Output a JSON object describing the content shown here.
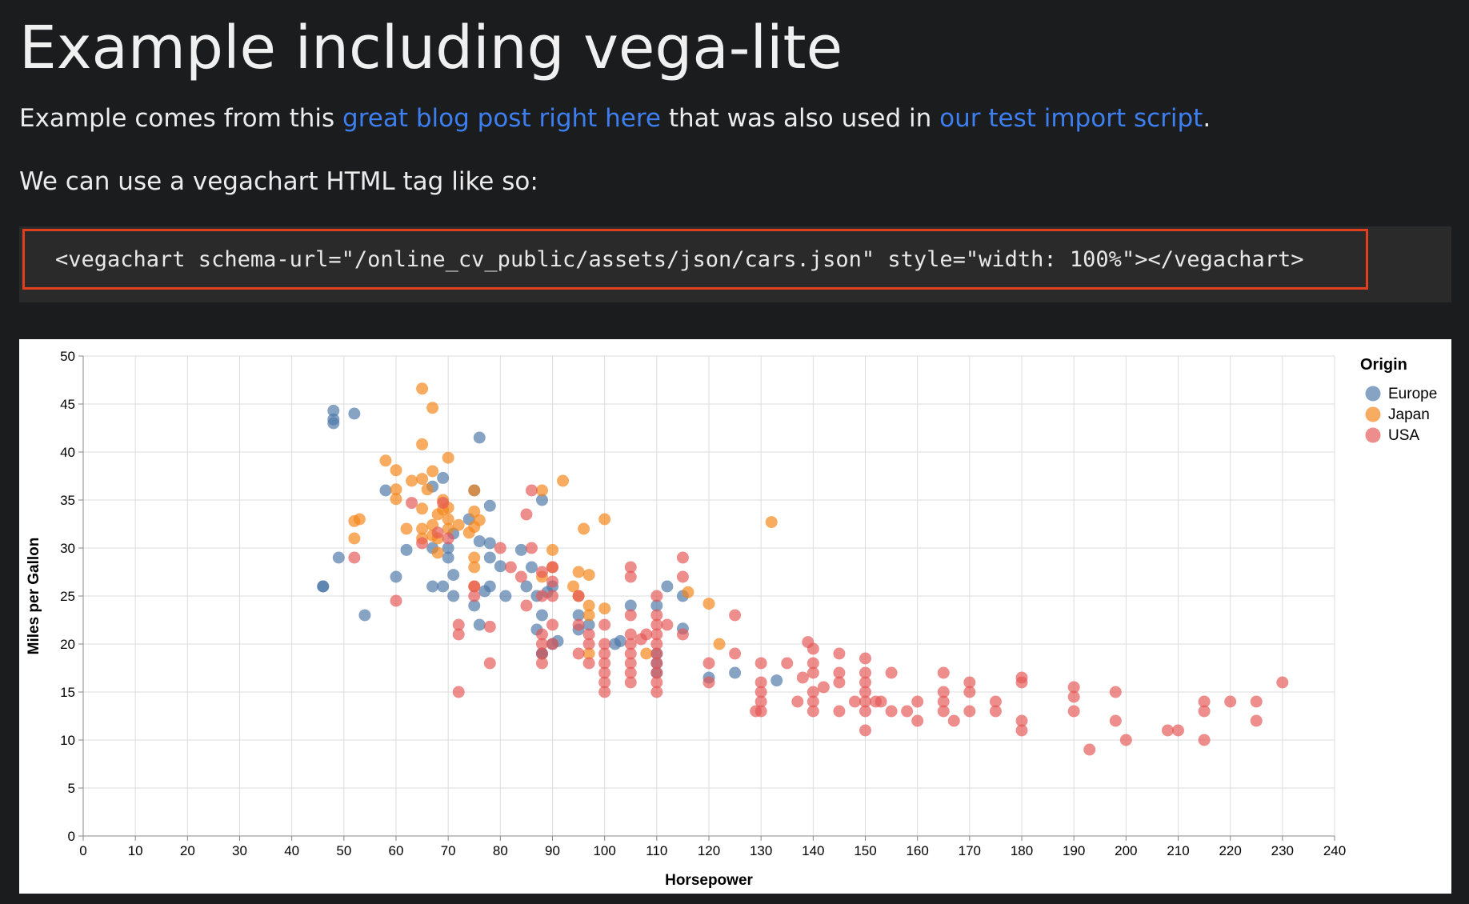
{
  "page": {
    "title": "Example including vega-lite",
    "intro": {
      "prefix": "Example comes from this ",
      "link1": "great blog post right here",
      "middle": " that was also used in ",
      "link2": "our test import script",
      "suffix": "."
    },
    "instruction": "We can use a vegachart HTML tag like so:",
    "code": "<vegachart schema-url=\"/online_cv_public/assets/json/cars.json\" style=\"width: 100%\"></vegachart>"
  },
  "colors": {
    "background": "#1b1c1e",
    "link": "#3d7ff0",
    "highlight_border": "#e2401c",
    "Europe": "#4c78a8",
    "Japan": "#f58518",
    "USA": "#e45756"
  },
  "chart_data": {
    "type": "scatter",
    "xlabel": "Horsepower",
    "ylabel": "Miles per Gallon",
    "xlim": [
      0,
      240
    ],
    "ylim": [
      0,
      50
    ],
    "x_ticks": [
      0,
      10,
      20,
      30,
      40,
      50,
      60,
      70,
      80,
      90,
      100,
      110,
      120,
      130,
      140,
      150,
      160,
      170,
      180,
      190,
      200,
      210,
      220,
      230,
      240
    ],
    "y_ticks": [
      0,
      5,
      10,
      15,
      20,
      25,
      30,
      35,
      40,
      45,
      50
    ],
    "grid": true,
    "legend": {
      "title": "Origin",
      "position": "top-right"
    },
    "series": [
      {
        "name": "Europe",
        "points": [
          [
            46,
            26
          ],
          [
            46,
            26
          ],
          [
            48,
            43
          ],
          [
            48,
            43.4
          ],
          [
            48,
            44.3
          ],
          [
            49,
            29
          ],
          [
            52,
            44
          ],
          [
            54,
            23
          ],
          [
            58,
            36
          ],
          [
            60,
            27
          ],
          [
            62,
            29.8
          ],
          [
            67,
            30
          ],
          [
            67,
            26
          ],
          [
            67,
            36.4
          ],
          [
            69,
            37.3
          ],
          [
            69,
            26
          ],
          [
            70,
            30
          ],
          [
            70,
            29
          ],
          [
            71,
            31.5
          ],
          [
            71,
            27.2
          ],
          [
            71,
            25
          ],
          [
            74,
            33
          ],
          [
            75,
            36
          ],
          [
            75,
            24
          ],
          [
            76,
            41.5
          ],
          [
            76,
            30.7
          ],
          [
            76,
            22
          ],
          [
            77,
            25.5
          ],
          [
            78,
            34.4
          ],
          [
            78,
            29
          ],
          [
            78,
            26
          ],
          [
            78,
            30.5
          ],
          [
            80,
            28.1
          ],
          [
            81,
            25
          ],
          [
            84,
            29.8
          ],
          [
            85,
            26
          ],
          [
            86,
            28
          ],
          [
            87,
            25
          ],
          [
            87,
            21.5
          ],
          [
            88,
            35
          ],
          [
            88,
            23
          ],
          [
            88,
            19
          ],
          [
            88,
            19
          ],
          [
            89,
            25.4
          ],
          [
            90,
            26
          ],
          [
            90,
            20
          ],
          [
            91,
            20.3
          ],
          [
            95,
            23
          ],
          [
            95,
            21.5
          ],
          [
            97,
            22
          ],
          [
            102,
            20
          ],
          [
            103,
            20.3
          ],
          [
            105,
            24
          ],
          [
            110,
            24
          ],
          [
            110,
            18
          ],
          [
            110,
            17
          ],
          [
            110,
            19
          ],
          [
            112,
            26
          ],
          [
            115,
            25
          ],
          [
            115,
            21.6
          ],
          [
            120,
            16.5
          ],
          [
            125,
            17
          ],
          [
            133,
            16.2
          ]
        ]
      },
      {
        "name": "Japan",
        "points": [
          [
            52,
            31
          ],
          [
            52,
            32.8
          ],
          [
            53,
            33
          ],
          [
            58,
            39.1
          ],
          [
            60,
            35.1
          ],
          [
            60,
            38.1
          ],
          [
            60,
            36.1
          ],
          [
            62,
            32
          ],
          [
            63,
            37
          ],
          [
            65,
            46.6
          ],
          [
            65,
            40.8
          ],
          [
            65,
            37.2
          ],
          [
            65,
            34.1
          ],
          [
            65,
            31
          ],
          [
            65,
            32
          ],
          [
            66,
            36.1
          ],
          [
            67,
            44.6
          ],
          [
            67,
            38
          ],
          [
            67,
            32.4
          ],
          [
            67,
            31.3
          ],
          [
            68,
            33.5
          ],
          [
            68,
            31
          ],
          [
            68,
            29.5
          ],
          [
            69,
            35
          ],
          [
            69,
            34
          ],
          [
            70,
            39.4
          ],
          [
            70,
            34.2
          ],
          [
            70,
            33
          ],
          [
            70,
            32
          ],
          [
            72,
            32.4
          ],
          [
            74,
            31.6
          ],
          [
            75,
            36
          ],
          [
            75,
            33.8
          ],
          [
            75,
            32.2
          ],
          [
            75,
            29
          ],
          [
            75,
            28
          ],
          [
            75,
            26
          ],
          [
            76,
            32.9
          ],
          [
            88,
            36
          ],
          [
            88,
            27
          ],
          [
            90,
            29.8
          ],
          [
            90,
            28
          ],
          [
            92,
            37
          ],
          [
            94,
            26
          ],
          [
            95,
            27.5
          ],
          [
            95,
            25
          ],
          [
            96,
            32
          ],
          [
            97,
            27.2
          ],
          [
            97,
            24
          ],
          [
            97,
            23
          ],
          [
            97,
            19
          ],
          [
            100,
            33
          ],
          [
            100,
            23.7
          ],
          [
            108,
            19
          ],
          [
            116,
            25.4
          ],
          [
            120,
            24.2
          ],
          [
            122,
            20
          ],
          [
            132,
            32.7
          ]
        ]
      },
      {
        "name": "USA",
        "points": [
          [
            52,
            29
          ],
          [
            60,
            24.5
          ],
          [
            63,
            34.7
          ],
          [
            65,
            30.5
          ],
          [
            68,
            31.6
          ],
          [
            69,
            34.7
          ],
          [
            70,
            31
          ],
          [
            72,
            22
          ],
          [
            72,
            21
          ],
          [
            72,
            15
          ],
          [
            75,
            26
          ],
          [
            75,
            25
          ],
          [
            78,
            21.8
          ],
          [
            78,
            18
          ],
          [
            80,
            30
          ],
          [
            82,
            28
          ],
          [
            84,
            27
          ],
          [
            85,
            24
          ],
          [
            85,
            33.5
          ],
          [
            86,
            36
          ],
          [
            86,
            30
          ],
          [
            88,
            27.5
          ],
          [
            88,
            25
          ],
          [
            88,
            21
          ],
          [
            88,
            20
          ],
          [
            88,
            19
          ],
          [
            88,
            18
          ],
          [
            90,
            28
          ],
          [
            90,
            26.5
          ],
          [
            90,
            25
          ],
          [
            90,
            22
          ],
          [
            90,
            20
          ],
          [
            95,
            25
          ],
          [
            95,
            22
          ],
          [
            95,
            19
          ],
          [
            97,
            21
          ],
          [
            97,
            20
          ],
          [
            97,
            18
          ],
          [
            100,
            22
          ],
          [
            100,
            20
          ],
          [
            100,
            19
          ],
          [
            100,
            18
          ],
          [
            100,
            17
          ],
          [
            100,
            16
          ],
          [
            100,
            15
          ],
          [
            105,
            28
          ],
          [
            105,
            27
          ],
          [
            105,
            23
          ],
          [
            105,
            21
          ],
          [
            105,
            20
          ],
          [
            105,
            19
          ],
          [
            105,
            18
          ],
          [
            105,
            17
          ],
          [
            105,
            16
          ],
          [
            107,
            20.5
          ],
          [
            108,
            21
          ],
          [
            110,
            25
          ],
          [
            110,
            23
          ],
          [
            110,
            22
          ],
          [
            110,
            21
          ],
          [
            110,
            20
          ],
          [
            110,
            19
          ],
          [
            110,
            18
          ],
          [
            110,
            17
          ],
          [
            110,
            16
          ],
          [
            110,
            15
          ],
          [
            112,
            22
          ],
          [
            115,
            21
          ],
          [
            115,
            29
          ],
          [
            115,
            27
          ],
          [
            120,
            18
          ],
          [
            120,
            16
          ],
          [
            125,
            19
          ],
          [
            125,
            23
          ],
          [
            129,
            13
          ],
          [
            130,
            18
          ],
          [
            130,
            16
          ],
          [
            130,
            15
          ],
          [
            130,
            14
          ],
          [
            130,
            13
          ],
          [
            135,
            18
          ],
          [
            137,
            14
          ],
          [
            138,
            16.5
          ],
          [
            139,
            20.2
          ],
          [
            140,
            19.5
          ],
          [
            140,
            18
          ],
          [
            140,
            17
          ],
          [
            140,
            15
          ],
          [
            140,
            14
          ],
          [
            140,
            13
          ],
          [
            142,
            15.5
          ],
          [
            145,
            19
          ],
          [
            145,
            17
          ],
          [
            145,
            16
          ],
          [
            145,
            13
          ],
          [
            148,
            14
          ],
          [
            150,
            18.5
          ],
          [
            150,
            17
          ],
          [
            150,
            16
          ],
          [
            150,
            15
          ],
          [
            150,
            14
          ],
          [
            150,
            13
          ],
          [
            150,
            11
          ],
          [
            152,
            14
          ],
          [
            153,
            14
          ],
          [
            155,
            17
          ],
          [
            155,
            13
          ],
          [
            158,
            13
          ],
          [
            160,
            14
          ],
          [
            160,
            12
          ],
          [
            165,
            17
          ],
          [
            165,
            15
          ],
          [
            165,
            14
          ],
          [
            165,
            13
          ],
          [
            167,
            12
          ],
          [
            170,
            16
          ],
          [
            170,
            15
          ],
          [
            170,
            13
          ],
          [
            175,
            14
          ],
          [
            175,
            13
          ],
          [
            180,
            16.5
          ],
          [
            180,
            16
          ],
          [
            180,
            12
          ],
          [
            180,
            11
          ],
          [
            190,
            15.5
          ],
          [
            190,
            14.5
          ],
          [
            190,
            13
          ],
          [
            193,
            9
          ],
          [
            198,
            15
          ],
          [
            198,
            12
          ],
          [
            200,
            10
          ],
          [
            208,
            11
          ],
          [
            210,
            11
          ],
          [
            215,
            14
          ],
          [
            215,
            13
          ],
          [
            215,
            10
          ],
          [
            220,
            14
          ],
          [
            225,
            14
          ],
          [
            225,
            12
          ],
          [
            230,
            16
          ]
        ]
      }
    ]
  }
}
